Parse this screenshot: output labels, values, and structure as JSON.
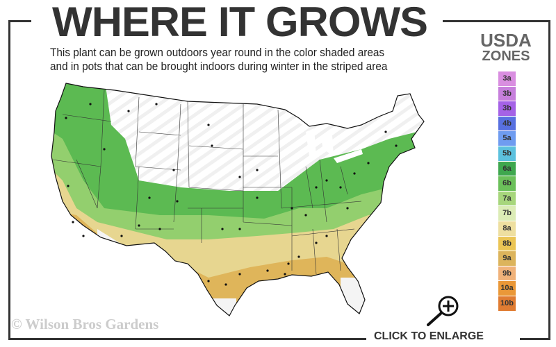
{
  "header": {
    "title": "WHERE IT GROWS",
    "subtitle_line1": "This plant can be grown outdoors year round in the color shaded areas",
    "subtitle_line2": "and in pots that can be brought indoors during winter in the striped area"
  },
  "legend": {
    "title_line1": "USDA",
    "title_line2": "ZONES",
    "zones": [
      {
        "label": "3a",
        "color": "#d98ee0"
      },
      {
        "label": "3b",
        "color": "#c77fdc"
      },
      {
        "label": "3b",
        "color": "#a562e6"
      },
      {
        "label": "4b",
        "color": "#5870e0"
      },
      {
        "label": "5a",
        "color": "#6f9cf0"
      },
      {
        "label": "5b",
        "color": "#5cc1de"
      },
      {
        "label": "6a",
        "color": "#3ea74e"
      },
      {
        "label": "6b",
        "color": "#6bc05a"
      },
      {
        "label": "7a",
        "color": "#a7d67c"
      },
      {
        "label": "7b",
        "color": "#dcecb6"
      },
      {
        "label": "8a",
        "color": "#eedfa0"
      },
      {
        "label": "8b",
        "color": "#ebc555"
      },
      {
        "label": "9a",
        "color": "#dcb45c"
      },
      {
        "label": "9b",
        "color": "#f0b27a"
      },
      {
        "label": "10a",
        "color": "#ea9838"
      },
      {
        "label": "10b",
        "color": "#e07c32"
      }
    ]
  },
  "footer": {
    "copyright": "© Wilson Bros Gardens",
    "enlarge_label": "CLICK TO ENLARGE",
    "enlarge_icon": "magnifier-plus-icon"
  }
}
